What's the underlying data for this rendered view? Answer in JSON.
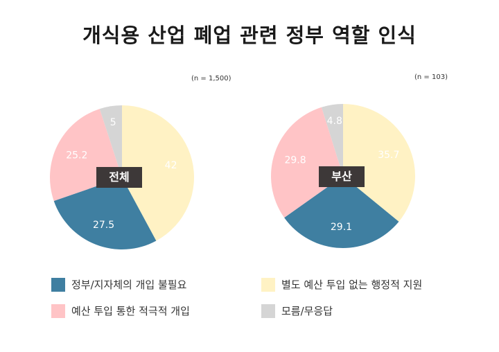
{
  "title": "개식용 산업 폐업 관련 정부 역할 인식",
  "colors": {
    "not_needed": "#3f7fa1",
    "support_without_budget": "#fff2c4",
    "budget_intervention": "#ffc4c6",
    "dont_know": "#d5d5d5"
  },
  "chart_data": [
    {
      "type": "pie",
      "name": "전체",
      "sample": "(n = 1,500)",
      "slices": [
        {
          "label": "별도 예산 투입 없는 행정적 지원",
          "key": "support_without_budget",
          "value": 42,
          "display": "42"
        },
        {
          "label": "정부/지자체의 개입 불필요",
          "key": "not_needed",
          "value": 27.5,
          "display": "27.5"
        },
        {
          "label": "예산 투입 통한 적극적 개입",
          "key": "budget_intervention",
          "value": 25.2,
          "display": "25.2"
        },
        {
          "label": "모름/무응답",
          "key": "dont_know",
          "value": 5,
          "display": "5"
        }
      ]
    },
    {
      "type": "pie",
      "name": "부산",
      "sample": "(n = 103)",
      "slices": [
        {
          "label": "별도 예산 투입 없는 행정적 지원",
          "key": "support_without_budget",
          "value": 35.7,
          "display": "35.7"
        },
        {
          "label": "정부/지자체의 개입 불필요",
          "key": "not_needed",
          "value": 29.1,
          "display": "29.1"
        },
        {
          "label": "예산 투입 통한 적극적 개입",
          "key": "budget_intervention",
          "value": 29.8,
          "display": "29.8"
        },
        {
          "label": "모름/무응답",
          "key": "dont_know",
          "value": 4.8,
          "display": "4.8"
        }
      ]
    }
  ],
  "legend": [
    {
      "key": "not_needed",
      "label": "정부/지자체의 개입 불필요"
    },
    {
      "key": "support_without_budget",
      "label": "별도 예산 투입 없는 행정적 지원"
    },
    {
      "key": "budget_intervention",
      "label": "예산 투입 통한 적극적 개입"
    },
    {
      "key": "dont_know",
      "label": "모름/무응답"
    }
  ]
}
